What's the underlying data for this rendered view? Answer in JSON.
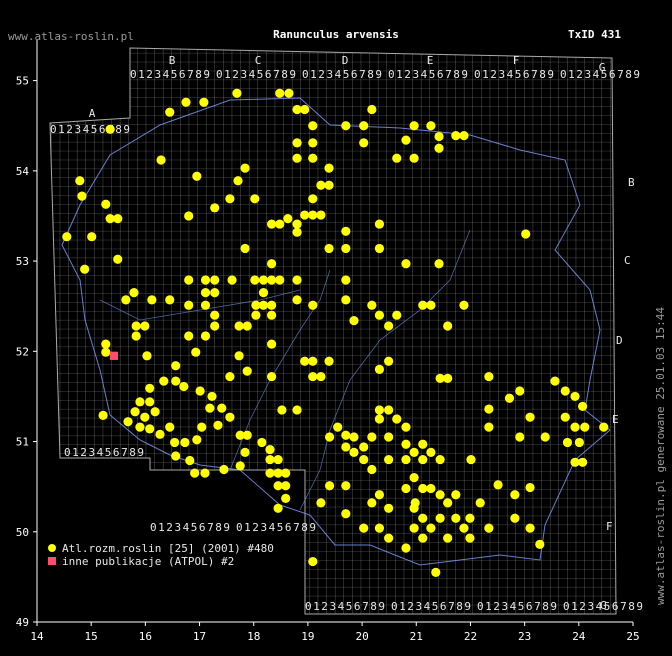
{
  "site": "www.atlas-roslin.pl",
  "taxon_id": "TxID 431",
  "footer_note": "www.atlas-roslin.pl generowane 25.01.03 15:44",
  "atpol": {
    "columns": [
      "A",
      "B",
      "C",
      "D",
      "E",
      "F",
      "G"
    ],
    "digits": "0123456789"
  },
  "chart_data": {
    "type": "scatter",
    "title": "Ranunculus arvensis",
    "xlim": [
      14,
      25
    ],
    "ylim": [
      49,
      55.45
    ],
    "xticks": [
      14,
      15,
      16,
      17,
      18,
      19,
      20,
      21,
      22,
      23,
      24,
      25
    ],
    "yticks": [
      49,
      50,
      51,
      52,
      53,
      54,
      55
    ],
    "legend": "lower left",
    "series": [
      {
        "name": "Atl.rozm.roslin [25] (2001) #480",
        "color": "#ffff00",
        "marker": "circle",
        "x": [
          15.35,
          16.45,
          16.75,
          17.08,
          17.69,
          18.48,
          18.65,
          18.8,
          18.94,
          20.18,
          19.7,
          19.09,
          19.09,
          18.8,
          18.8,
          19.09,
          20.03,
          20.03,
          20.96,
          21.27,
          20.81,
          21.42,
          21.73,
          21.88,
          20.64,
          20.96,
          21.42,
          16.29,
          16.95,
          14.79,
          14.83,
          17.84,
          17.71,
          17.56,
          18.02,
          19.39,
          19.24,
          19.39,
          19.09,
          18.94,
          19.09,
          19.24,
          18.8,
          18.63,
          18.48,
          18.33,
          18.8,
          19.7,
          20.32,
          20.32,
          19.7,
          19.39,
          17.28,
          16.8,
          15.27,
          15.35,
          15.49,
          14.55,
          15.01,
          14.88,
          15.49,
          23.02,
          17.84,
          18.33,
          18.33,
          18.18,
          18.02,
          18.48,
          18.8,
          19.7,
          20.81,
          21.42,
          16.8,
          17.11,
          17.28,
          17.6,
          17.11,
          17.28,
          15.79,
          15.64,
          16.12,
          16.45,
          16.8,
          17.11,
          18.18,
          18.04,
          18.18,
          18.33,
          18.04,
          18.33,
          18.8,
          19.09,
          19.7,
          20.18,
          20.32,
          20.64,
          20.49,
          19.85,
          21.12,
          21.27,
          21.88,
          21.58,
          15.83,
          15.99,
          15.83,
          17.28,
          17.28,
          17.73,
          17.88,
          16.8,
          17.11,
          18.33,
          15.27,
          15.27,
          16.03,
          16.93,
          17.73,
          18.94,
          19.09,
          19.39,
          19.09,
          19.24,
          18.33,
          17.56,
          17.88,
          20.32,
          20.49,
          21.44,
          21.58,
          22.34,
          16.56,
          16.34,
          16.56,
          16.71,
          16.08,
          15.9,
          16.08,
          15.81,
          15.99,
          16.18,
          15.68,
          15.9,
          16.08,
          16.27,
          16.45,
          16.54,
          16.73,
          16.56,
          16.82,
          16.91,
          17.1,
          17.01,
          17.23,
          17.19,
          17.41,
          17.56,
          17.04,
          16.95,
          17.34,
          17.75,
          17.88,
          17.84,
          18.15,
          18.3,
          18.3,
          18.45,
          18.3,
          18.45,
          18.59,
          18.45,
          18.59,
          18.59,
          18.45,
          17.75,
          17.45,
          18.52,
          18.8,
          15.22,
          19.09,
          20.32,
          20.49,
          20.32,
          20.64,
          20.81,
          19.55,
          19.7,
          19.85,
          19.7,
          19.85,
          20.03,
          20.18,
          20.49,
          20.81,
          20.96,
          21.12,
          21.27,
          21.44,
          21.12,
          20.81,
          20.49,
          20.03,
          20.18,
          19.4,
          19.4,
          19.7,
          19.24,
          19.7,
          20.18,
          20.32,
          20.49,
          20.81,
          20.96,
          21.12,
          21.27,
          21.44,
          21.58,
          21.73,
          20.96,
          21.12,
          21.27,
          21.44,
          21.73,
          21.88,
          21.99,
          21.99,
          21.58,
          21.12,
          20.96,
          20.81,
          20.49,
          20.32,
          20.03,
          21.36,
          22.18,
          22.34,
          22.51,
          22.82,
          23.1,
          22.82,
          23.1,
          23.28,
          22.01,
          22.34,
          22.34,
          22.72,
          22.91,
          23.1,
          23.38,
          23.56,
          23.75,
          23.93,
          24.07,
          23.75,
          23.93,
          24.11,
          23.79,
          24.01,
          23.93,
          24.07,
          24.46,
          22.91,
          20.98
        ],
        "y": [
          54.46,
          54.65,
          54.76,
          54.76,
          54.86,
          54.86,
          54.86,
          54.68,
          54.68,
          54.68,
          54.5,
          54.5,
          54.31,
          54.31,
          54.14,
          54.14,
          54.5,
          54.31,
          54.5,
          54.5,
          54.34,
          54.38,
          54.39,
          54.39,
          54.14,
          54.14,
          54.25,
          54.12,
          53.94,
          53.89,
          53.72,
          54.03,
          53.89,
          53.69,
          53.69,
          54.03,
          53.84,
          53.84,
          53.69,
          53.51,
          53.51,
          53.51,
          53.41,
          53.47,
          53.41,
          53.41,
          53.32,
          53.33,
          53.41,
          53.14,
          53.14,
          53.14,
          53.59,
          53.5,
          53.63,
          53.47,
          53.47,
          53.27,
          53.27,
          52.91,
          53.02,
          53.3,
          53.14,
          52.97,
          52.79,
          52.79,
          52.79,
          52.79,
          52.79,
          52.79,
          52.97,
          52.97,
          52.79,
          52.79,
          52.79,
          52.79,
          52.65,
          52.65,
          52.65,
          52.57,
          52.57,
          52.57,
          52.51,
          52.51,
          52.65,
          52.51,
          52.51,
          52.51,
          52.4,
          52.4,
          52.57,
          52.51,
          52.57,
          52.51,
          52.4,
          52.4,
          52.28,
          52.34,
          52.51,
          52.51,
          52.51,
          52.28,
          52.28,
          52.28,
          52.17,
          52.4,
          52.28,
          52.28,
          52.28,
          52.17,
          52.17,
          52.08,
          52.08,
          51.99,
          51.95,
          51.99,
          51.95,
          51.89,
          51.89,
          51.89,
          51.72,
          51.72,
          51.72,
          51.72,
          51.78,
          51.8,
          51.89,
          51.7,
          51.7,
          51.72,
          51.84,
          51.67,
          51.67,
          51.61,
          51.59,
          51.44,
          51.44,
          51.33,
          51.27,
          51.33,
          51.22,
          51.16,
          51.14,
          51.08,
          51.16,
          50.99,
          50.99,
          50.84,
          50.79,
          50.65,
          50.65,
          51.56,
          51.5,
          51.37,
          51.37,
          51.27,
          51.16,
          51.02,
          51.18,
          51.07,
          51.07,
          50.88,
          50.99,
          50.91,
          50.8,
          50.8,
          50.65,
          50.65,
          50.65,
          50.51,
          50.51,
          50.37,
          50.26,
          50.73,
          50.69,
          51.35,
          51.35,
          51.29,
          49.67,
          51.35,
          51.35,
          51.25,
          51.25,
          51.16,
          51.16,
          51.07,
          51.05,
          50.94,
          50.88,
          50.94,
          51.05,
          51.05,
          50.97,
          50.88,
          50.97,
          50.88,
          50.8,
          50.8,
          50.8,
          50.8,
          50.8,
          50.69,
          51.05,
          50.51,
          50.51,
          50.32,
          50.2,
          50.32,
          50.41,
          50.26,
          50.48,
          50.6,
          50.48,
          50.48,
          50.41,
          50.32,
          50.41,
          50.26,
          50.15,
          50.04,
          50.15,
          50.15,
          50.04,
          50.15,
          49.93,
          49.93,
          49.93,
          50.04,
          49.82,
          49.93,
          50.04,
          50.04,
          49.55,
          50.32,
          50.04,
          50.52,
          50.41,
          50.49,
          50.15,
          50.04,
          49.86,
          50.8,
          51.16,
          51.36,
          51.48,
          51.56,
          51.27,
          51.05,
          51.67,
          51.56,
          51.5,
          51.39,
          51.27,
          51.16,
          51.16,
          50.99,
          50.99,
          50.77,
          50.77,
          51.16,
          51.05,
          50.32
        ]
      },
      {
        "name": "inne publikacje (ATPOL) #2",
        "color": "#ff4d6d",
        "marker": "square",
        "x": [
          15.42,
          15.42
        ],
        "y": [
          51.95,
          51.95
        ]
      }
    ]
  }
}
